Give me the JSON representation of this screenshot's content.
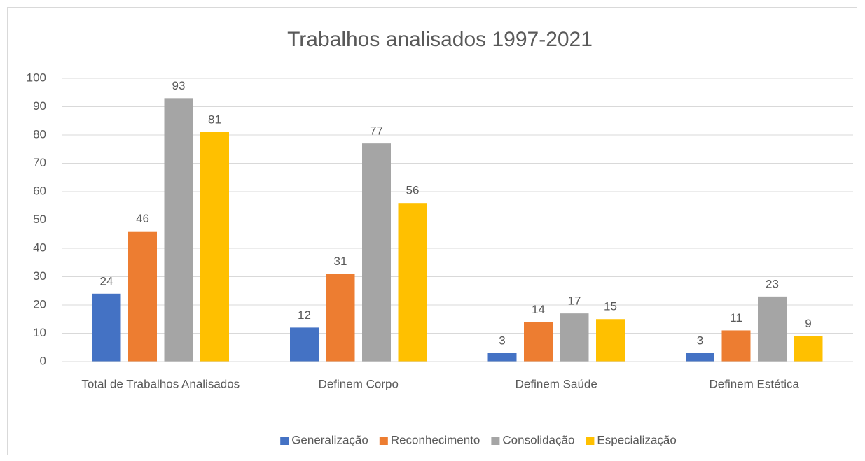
{
  "chart_data": {
    "type": "bar",
    "title": "Trabalhos analisados 1997-2021",
    "categories": [
      "Total de Trabalhos Analisados",
      "Definem Corpo",
      "Definem Saúde",
      "Definem Estética"
    ],
    "series": [
      {
        "name": "Generalização",
        "color": "#4472c4",
        "values": [
          24,
          12,
          3,
          3
        ]
      },
      {
        "name": "Reconhecimento",
        "color": "#ed7d31",
        "values": [
          46,
          31,
          14,
          11
        ]
      },
      {
        "name": "Consolidação",
        "color": "#a5a5a5",
        "values": [
          93,
          77,
          17,
          23
        ]
      },
      {
        "name": "Especialização",
        "color": "#ffc000",
        "values": [
          81,
          56,
          15,
          9
        ]
      }
    ],
    "ylim": [
      0,
      100
    ],
    "yticks": [
      0,
      10,
      20,
      30,
      40,
      50,
      60,
      70,
      80,
      90,
      100
    ],
    "grid": true,
    "legend": "bottom"
  }
}
